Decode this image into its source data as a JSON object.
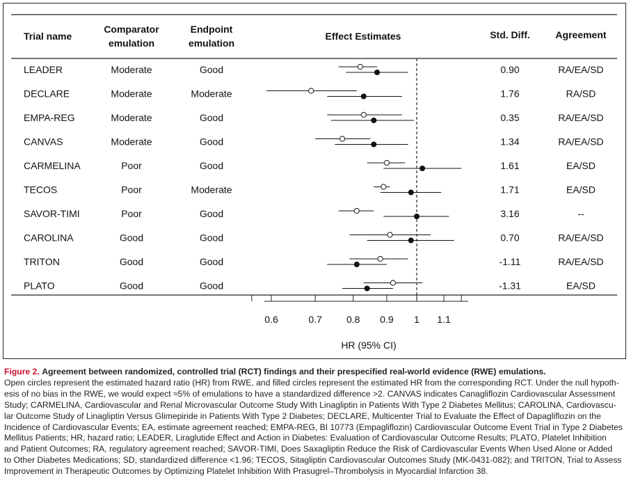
{
  "chart_data": {
    "type": "forest",
    "headers": {
      "trial": "Trial name",
      "comparator_l1": "Comparator",
      "comparator_l2": "emulation",
      "endpoint_l1": "Endpoint",
      "endpoint_l2": "emulation",
      "effect": "Effect Estimates",
      "std": "Std. Diff.",
      "agreement": "Agreement"
    },
    "xlabel": "HR (95% CI)",
    "x_ticks": [
      0.6,
      0.7,
      0.8,
      0.9,
      1,
      1.1
    ],
    "x_tick_labels": [
      "0.6",
      "0.7",
      "0.8",
      "0.9",
      "1",
      "1.1"
    ],
    "reference_line": 1,
    "scale": "log",
    "rows": [
      {
        "trial": "LEADER",
        "comparator": "Moderate",
        "endpoint": "Good",
        "rwe": {
          "hr": 0.82,
          "lo": 0.76,
          "hi": 0.87
        },
        "rct": {
          "hr": 0.87,
          "lo": 0.78,
          "hi": 0.97
        },
        "std_diff": "0.90",
        "agreement": "RA/EA/SD"
      },
      {
        "trial": "DECLARE",
        "comparator": "Moderate",
        "endpoint": "Moderate",
        "rwe": {
          "hr": 0.69,
          "lo": 0.59,
          "hi": 0.81
        },
        "rct": {
          "hr": 0.83,
          "lo": 0.73,
          "hi": 0.95
        },
        "std_diff": "1.76",
        "agreement": "RA/SD"
      },
      {
        "trial": "EMPA-REG",
        "comparator": "Moderate",
        "endpoint": "Good",
        "rwe": {
          "hr": 0.83,
          "lo": 0.73,
          "hi": 0.95
        },
        "rct": {
          "hr": 0.86,
          "lo": 0.74,
          "hi": 0.99
        },
        "std_diff": "0.35",
        "agreement": "RA/EA/SD"
      },
      {
        "trial": "CANVAS",
        "comparator": "Moderate",
        "endpoint": "Good",
        "rwe": {
          "hr": 0.77,
          "lo": 0.7,
          "hi": 0.85
        },
        "rct": {
          "hr": 0.86,
          "lo": 0.75,
          "hi": 0.97
        },
        "std_diff": "1.34",
        "agreement": "RA/EA/SD"
      },
      {
        "trial": "CARMELINA",
        "comparator": "Poor",
        "endpoint": "Good",
        "rwe": {
          "hr": 0.9,
          "lo": 0.84,
          "hi": 0.96
        },
        "rct": {
          "hr": 1.02,
          "lo": 0.89,
          "hi": 1.17
        },
        "std_diff": "1.61",
        "agreement": "EA/SD"
      },
      {
        "trial": "TECOS",
        "comparator": "Poor",
        "endpoint": "Moderate",
        "rwe": {
          "hr": 0.89,
          "lo": 0.86,
          "hi": 0.91
        },
        "rct": {
          "hr": 0.98,
          "lo": 0.88,
          "hi": 1.09
        },
        "std_diff": "1.71",
        "agreement": "EA/SD"
      },
      {
        "trial": "SAVOR-TIMI",
        "comparator": "Poor",
        "endpoint": "Good",
        "rwe": {
          "hr": 0.81,
          "lo": 0.76,
          "hi": 0.86
        },
        "rct": {
          "hr": 1.0,
          "lo": 0.89,
          "hi": 1.12
        },
        "std_diff": "3.16",
        "agreement": "--"
      },
      {
        "trial": "CAROLINA",
        "comparator": "Good",
        "endpoint": "Good",
        "rwe": {
          "hr": 0.91,
          "lo": 0.79,
          "hi": 1.05
        },
        "rct": {
          "hr": 0.98,
          "lo": 0.84,
          "hi": 1.14
        },
        "std_diff": "0.70",
        "agreement": "RA/EA/SD"
      },
      {
        "trial": "TRITON",
        "comparator": "Good",
        "endpoint": "Good",
        "rwe": {
          "hr": 0.88,
          "lo": 0.79,
          "hi": 0.97
        },
        "rct": {
          "hr": 0.81,
          "lo": 0.73,
          "hi": 0.9
        },
        "std_diff": "-1.11",
        "agreement": "RA/EA/SD"
      },
      {
        "trial": "PLATO",
        "comparator": "Good",
        "endpoint": "Good",
        "rwe": {
          "hr": 0.92,
          "lo": 0.83,
          "hi": 1.02
        },
        "rct": {
          "hr": 0.84,
          "lo": 0.77,
          "hi": 0.92
        },
        "std_diff": "-1.31",
        "agreement": "EA/SD"
      }
    ]
  },
  "caption": {
    "label": "Figure 2.",
    "title": "Agreement between randomized, controlled trial (RCT) findings and their prespecified real-world evidence (RWE) emulations.",
    "lines": [
      "Open circles represent the estimated hazard ratio (HR) from RWE, and filled circles represent the estimated HR from the corresponding RCT. Under the null hypoth-",
      "esis of no bias in the RWE, we would expect ≈5% of emulations to have a standardized difference >2. CANVAS indicates Canagliflozin Cardiovascular Assessment",
      "Study; CARMELINA, Cardiovascular and Renal Microvascular Outcome Study With Linagliptin in Patients With Type 2 Diabetes Mellitus; CAROLINA, Cardiovascu-",
      "lar Outcome Study of Linagliptin Versus Glimepiride in Patients With Type 2 Diabetes; DECLARE, Multicenter Trial to Evaluate the Effect of Dapagliflozin on the",
      "Incidence of Cardiovascular Events; EA, estimate agreement reached; EMPA-REG, BI 10773 (Empagliflozin) Cardiovascular Outcome Event Trial in Type 2 Diabetes",
      "Mellitus Patients; HR, hazard ratio; LEADER, Liraglutide Effect and Action in Diabetes: Evaluation of Cardiovascular Outcome Results; PLATO, Platelet Inhibition",
      "and Patient Outcomes; RA, regulatory agreement reached; SAVOR-TIMI, Does Saxagliptin Reduce the Risk of Cardiovascular Events When Used Alone or Added",
      "to Other Diabetes Medications; SD, standardized difference <1.96; TECOS, Sitagliptin Cardiovascular Outcomes Study (MK-0431-082); and TRITON, Trial to Assess",
      "Improvement in Therapeutic Outcomes by Optimizing Platelet Inhibition With Prasugrel–Thrombolysis in Myocardial Infarction 38."
    ]
  }
}
